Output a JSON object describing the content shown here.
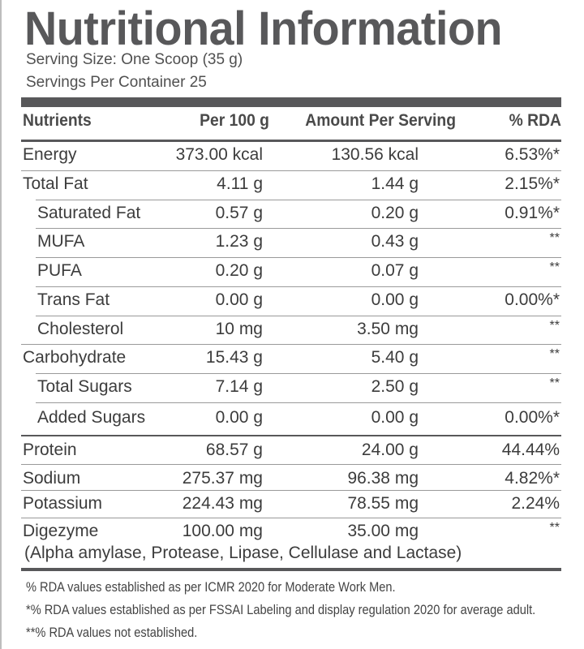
{
  "title": "Nutritional Information",
  "serving_size": "Serving Size: One Scoop (35 g)",
  "servings_per_container": "Servings Per Container 25",
  "headers": {
    "nutrient": "Nutrients",
    "per100": "Per 100 g",
    "per_serving": "Amount Per Serving",
    "rda": "% RDA"
  },
  "rows": [
    {
      "name": "Energy",
      "per100": "373.00 kcal",
      "serving": "130.56 kcal",
      "rda": "6.53%*"
    },
    {
      "name": "Total Fat",
      "per100": "4.11 g",
      "serving": "1.44 g",
      "rda": "2.15%*"
    },
    {
      "name": "Saturated Fat",
      "per100": "0.57 g",
      "serving": "0.20 g",
      "rda": "0.91%*"
    },
    {
      "name": "MUFA",
      "per100": "1.23 g",
      "serving": "0.43 g",
      "rda": "**"
    },
    {
      "name": "PUFA",
      "per100": "0.20 g",
      "serving": "0.07 g",
      "rda": "**"
    },
    {
      "name": "Trans Fat",
      "per100": "0.00 g",
      "serving": "0.00 g",
      "rda": "0.00%*"
    },
    {
      "name": "Cholesterol",
      "per100": "10 mg",
      "serving": "3.50 mg",
      "rda": "**"
    },
    {
      "name": "Carbohydrate",
      "per100": "15.43 g",
      "serving": "5.40 g",
      "rda": "**"
    },
    {
      "name": "Total Sugars",
      "per100": "7.14 g",
      "serving": "2.50 g",
      "rda": "**"
    },
    {
      "name": "Added Sugars",
      "per100": "0.00 g",
      "serving": "0.00 g",
      "rda": "0.00%*"
    },
    {
      "name": "Protein",
      "per100": "68.57 g",
      "serving": "24.00 g",
      "rda": "44.44%"
    },
    {
      "name": "Sodium",
      "per100": "275.37 mg",
      "serving": "96.38 mg",
      "rda": "4.82%*"
    },
    {
      "name": "Potassium",
      "per100": "224.43 mg",
      "serving": "78.55 mg",
      "rda": "2.24%"
    },
    {
      "name": "Digezyme",
      "per100": "100.00 mg",
      "serving": "35.00 mg",
      "rda": "**"
    }
  ],
  "digezyme_note": "(Alpha amylase, Protease, Lipase, Cellulase and Lactase)",
  "footnotes": [
    "% RDA values established as per ICMR 2020 for Moderate Work Men.",
    "*% RDA values established as per FSSAI Labeling and display regulation 2020 for average adult.",
    "**% RDA values not established."
  ]
}
